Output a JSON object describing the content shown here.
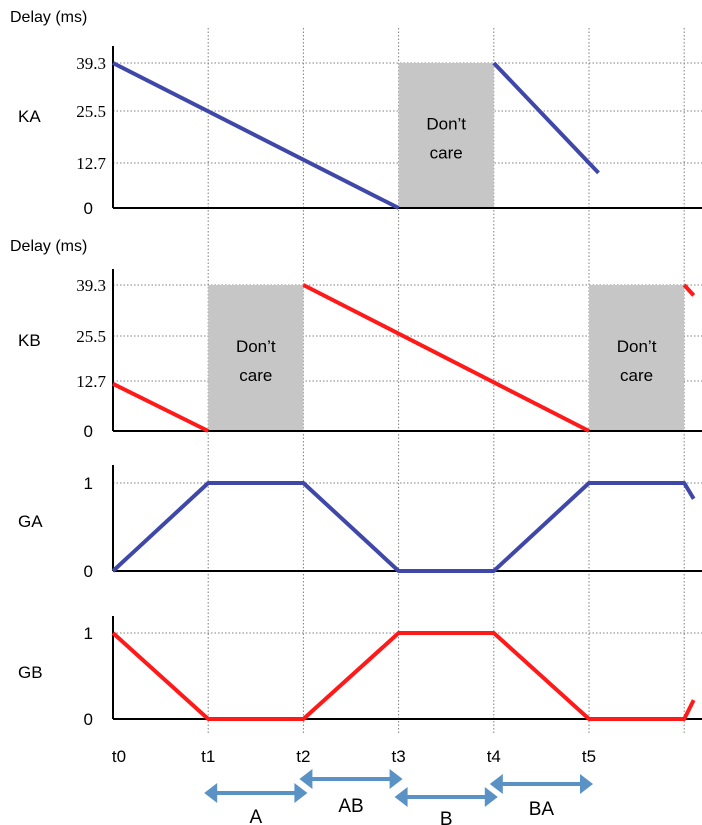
{
  "chart_data": [
    {
      "type": "line",
      "panel_label": "KA",
      "ylabel": "Delay (ms)",
      "y_ticks": [
        "0",
        "12.7",
        "25.5",
        "39.3"
      ],
      "ylim": [
        0,
        39.3
      ],
      "series": [
        {
          "color": "#3f48a8",
          "segments": [
            {
              "x": [
                0,
                3
              ],
              "y": [
                39.3,
                0
              ]
            },
            {
              "x": [
                4,
                5.1
              ],
              "y": [
                39.3,
                9.5
              ]
            }
          ]
        }
      ],
      "dont_care": [
        {
          "x": [
            3,
            4
          ],
          "label": [
            "Don’t",
            "care"
          ]
        }
      ]
    },
    {
      "type": "line",
      "panel_label": "KB",
      "ylabel": "Delay (ms)",
      "y_ticks": [
        "0",
        "12.7",
        "25.5",
        "39.3"
      ],
      "ylim": [
        0,
        39.3
      ],
      "series": [
        {
          "color": "#ff1a1a",
          "segments": [
            {
              "x": [
                0,
                1
              ],
              "y": [
                12.7,
                0
              ]
            },
            {
              "x": [
                2,
                5
              ],
              "y": [
                39.3,
                0
              ]
            },
            {
              "x": [
                6,
                6.1
              ],
              "y": [
                39.3,
                36.5
              ]
            }
          ]
        }
      ],
      "dont_care": [
        {
          "x": [
            1,
            2
          ],
          "label": [
            "Don’t",
            "care"
          ]
        },
        {
          "x": [
            5,
            6
          ],
          "label": [
            "Don’t",
            "care"
          ]
        }
      ]
    },
    {
      "type": "line",
      "panel_label": "GA",
      "y_ticks": [
        "0",
        "1"
      ],
      "ylim": [
        0,
        1
      ],
      "series": [
        {
          "color": "#3f48a8",
          "segments": [
            {
              "x": [
                0,
                1,
                2,
                3,
                4,
                5,
                6,
                6.1
              ],
              "y": [
                0,
                1,
                1,
                0,
                0,
                1,
                1,
                0.82
              ]
            }
          ]
        }
      ]
    },
    {
      "type": "line",
      "panel_label": "GB",
      "y_ticks": [
        "0",
        "1"
      ],
      "ylim": [
        0,
        1
      ],
      "series": [
        {
          "color": "#ff1a1a",
          "segments": [
            {
              "x": [
                0,
                1,
                2,
                3,
                4,
                5,
                6,
                6.1
              ],
              "y": [
                1,
                0,
                0,
                1,
                1,
                0,
                0,
                0.22
              ]
            }
          ]
        }
      ]
    }
  ],
  "x_ticks": [
    "t0",
    "t1",
    "t2",
    "t3",
    "t4",
    "t5"
  ],
  "phases": [
    {
      "label": "A",
      "x": [
        1,
        2
      ]
    },
    {
      "label": "AB",
      "x": [
        2,
        3
      ]
    },
    {
      "label": "B",
      "x": [
        3,
        4
      ]
    },
    {
      "label": "BA",
      "x": [
        4,
        5
      ]
    }
  ],
  "colors": {
    "ka": "#3f48a8",
    "kb": "#ff1a1a",
    "dont_care": "#c6c6c6",
    "arrow": "#5b92c6",
    "grid": "#808080"
  }
}
